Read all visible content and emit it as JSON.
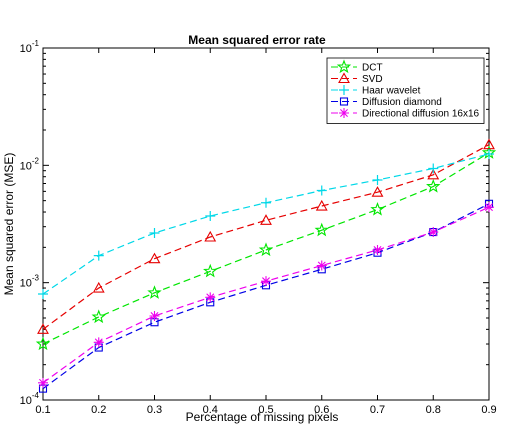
{
  "chart_data": {
    "type": "line",
    "title": "Mean squared error rate",
    "xlabel": "Percentage of missing pixels",
    "ylabel": "Mean squared error (MSE)",
    "x": [
      0.1,
      0.2,
      0.3,
      0.4,
      0.5,
      0.6,
      0.7,
      0.8,
      0.9
    ],
    "x_ticks": [
      "0.1",
      "0.2",
      "0.3",
      "0.4",
      "0.5",
      "0.6",
      "0.7",
      "0.8",
      "0.9"
    ],
    "xlim": [
      0.1,
      0.9
    ],
    "ylim": [
      0.0001,
      0.1
    ],
    "y_scale": "log",
    "y_ticks": [
      {
        "value": 0.1,
        "base": "10",
        "exp": "-1"
      },
      {
        "value": 0.01,
        "base": "10",
        "exp": "-2"
      },
      {
        "value": 0.001,
        "base": "10",
        "exp": "-3"
      },
      {
        "value": 0.0001,
        "base": "10",
        "exp": "-4"
      }
    ],
    "grid": false,
    "legend_position": "top-right",
    "series": [
      {
        "name": "DCT",
        "color": "#00e600",
        "marker": "star",
        "values": [
          0.0003,
          0.00051,
          0.00082,
          0.00125,
          0.0019,
          0.0028,
          0.0042,
          0.0066,
          0.0128
        ]
      },
      {
        "name": "SVD",
        "color": "#e60000",
        "marker": "triangle",
        "values": [
          0.0004,
          0.0009,
          0.0016,
          0.00245,
          0.0034,
          0.0045,
          0.0059,
          0.0083,
          0.015
        ]
      },
      {
        "name": "Haar wavelet",
        "color": "#00d8e8",
        "marker": "plus",
        "values": [
          0.0008,
          0.0017,
          0.00265,
          0.0037,
          0.0048,
          0.0061,
          0.0075,
          0.0094,
          0.0125
        ]
      },
      {
        "name": "Diffusion diamond",
        "color": "#0000e6",
        "marker": "square",
        "values": [
          0.000125,
          0.00028,
          0.00046,
          0.00068,
          0.00095,
          0.0013,
          0.0018,
          0.0027,
          0.0047
        ]
      },
      {
        "name": "Directional diffusion 16x16",
        "color": "#ee00ee",
        "marker": "asterisk",
        "values": [
          0.00014,
          0.00031,
          0.00052,
          0.00075,
          0.00103,
          0.0014,
          0.0019,
          0.0027,
          0.0044
        ]
      }
    ]
  }
}
